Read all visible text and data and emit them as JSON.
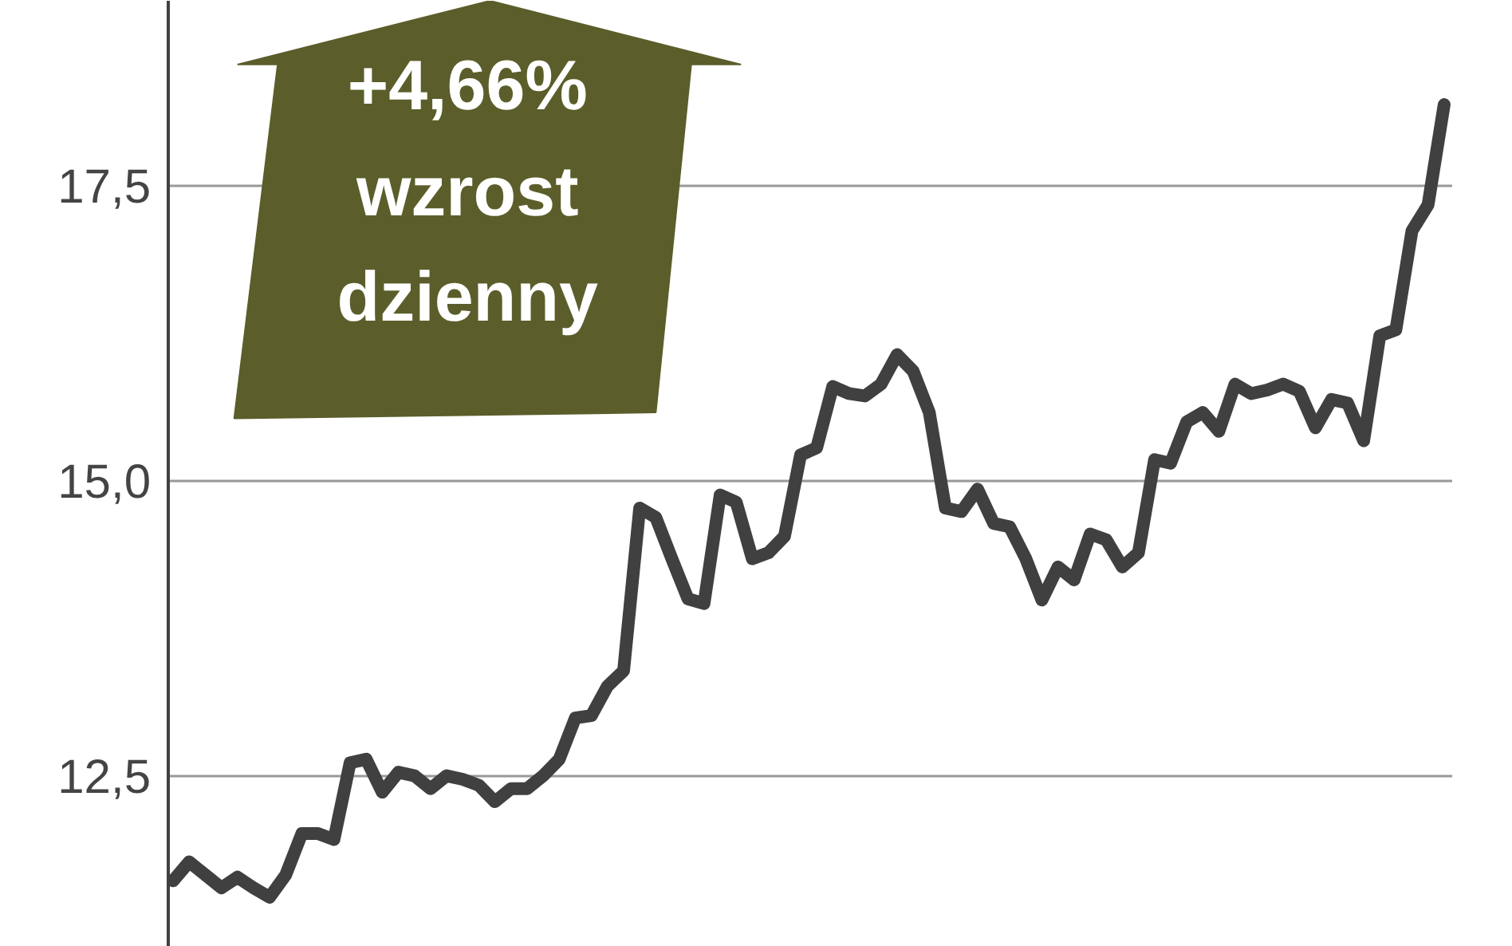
{
  "chart_data": {
    "type": "line",
    "categories": [
      null,
      null,
      null,
      null,
      null,
      null,
      null,
      null,
      null,
      null,
      null,
      null,
      null,
      null,
      null,
      null,
      null,
      null,
      null,
      null,
      null,
      null,
      null,
      null,
      null,
      null,
      null,
      null,
      null,
      null,
      null,
      null,
      null,
      null,
      null,
      null,
      null,
      null,
      null,
      null,
      null,
      null,
      null,
      null,
      null,
      null,
      null,
      null,
      null,
      null,
      null,
      null,
      null,
      null,
      null,
      null,
      null,
      null,
      null,
      null,
      null,
      null,
      null,
      null,
      null,
      null,
      null,
      null,
      null,
      null,
      null,
      null,
      null,
      null,
      null,
      null,
      null,
      null,
      null,
      null
    ],
    "series": [
      {
        "color": "#404040",
        "values": [
          11.61,
          11.77,
          11.66,
          11.55,
          11.64,
          11.55,
          11.47,
          11.66,
          12.01,
          12.01,
          11.96,
          12.61,
          12.64,
          12.36,
          12.53,
          12.5,
          12.39,
          12.5,
          12.47,
          12.42,
          12.28,
          12.39,
          12.39,
          12.5,
          12.64,
          12.99,
          13.01,
          13.26,
          13.39,
          14.77,
          14.69,
          14.34,
          14.0,
          13.96,
          14.88,
          14.82,
          14.34,
          14.39,
          14.53,
          15.22,
          15.28,
          15.8,
          15.74,
          15.72,
          15.82,
          16.07,
          15.93,
          15.58,
          14.77,
          14.74,
          14.93,
          14.64,
          14.61,
          14.34,
          13.99,
          14.27,
          14.16,
          14.55,
          14.5,
          14.27,
          14.39,
          15.18,
          15.15,
          15.5,
          15.58,
          15.42,
          15.82,
          15.74,
          15.77,
          15.82,
          15.76,
          15.45,
          15.69,
          15.66,
          15.34,
          16.23,
          16.28,
          17.12,
          17.34,
          18.19
        ]
      }
    ],
    "ylim": [
      11.05,
      19.07
    ],
    "yticks": [
      {
        "value": 12.5,
        "label": "12,5"
      },
      {
        "value": 15,
        "label": "15,0"
      },
      {
        "value": 17.5,
        "label": "17,5"
      }
    ],
    "grid": "y",
    "marker": "none",
    "line_style": "solid",
    "annotations": [
      "+4,66%\nwzrost\ndzienny"
    ]
  }
}
